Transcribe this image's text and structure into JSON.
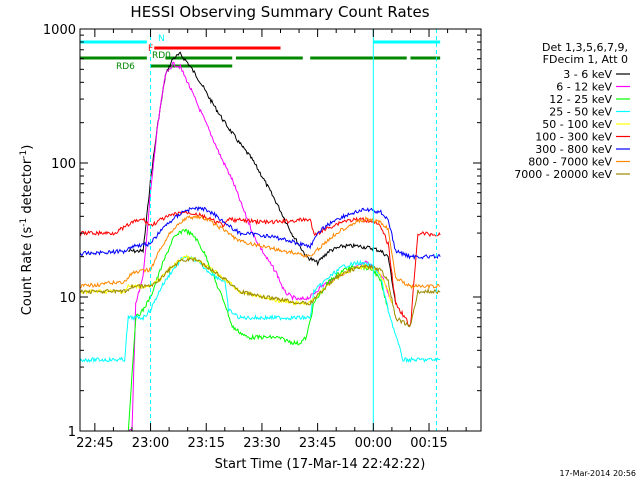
{
  "chart_data": {
    "type": "line",
    "title": "HESSI Observing Summary Count Rates",
    "xlabel": "Start Time (17-Mar-14 22:42:22)",
    "ylabel": "Count Rate (s",
    "ylabel_sup": "-1",
    "ylabel_tail": " detector",
    "ylabel_sup2": "-1",
    "ylabel_close": ")",
    "yscale": "log",
    "ylim": [
      1,
      1000
    ],
    "xlim_minutes": [
      -19,
      89
    ],
    "x_ticks": [
      {
        "label": "22:45",
        "minute": -15
      },
      {
        "label": "23:00",
        "minute": 0
      },
      {
        "label": "23:15",
        "minute": 15
      },
      {
        "label": "23:30",
        "minute": 30
      },
      {
        "label": "23:45",
        "minute": 45
      },
      {
        "label": "00:00",
        "minute": 60
      },
      {
        "label": "00:15",
        "minute": 75
      }
    ],
    "y_ticks": [
      {
        "label": "1",
        "value": 1
      },
      {
        "label": "10",
        "value": 10
      },
      {
        "label": "100",
        "value": 100
      },
      {
        "label": "1000",
        "value": 1000
      }
    ],
    "legend_header": [
      "Det 1,3,5,6,7,9,",
      "FDecim 1, Att 0"
    ],
    "legend_position": "right",
    "series": [
      {
        "name": "3 - 6 keV",
        "color": "#000000",
        "points": [
          [
            -6,
            22
          ],
          [
            -2,
            22
          ],
          [
            -1,
            40
          ],
          [
            0,
            75
          ],
          [
            2,
            200
          ],
          [
            4,
            450
          ],
          [
            6,
            600
          ],
          [
            8,
            650
          ],
          [
            10,
            560
          ],
          [
            13,
            420
          ],
          [
            16,
            300
          ],
          [
            20,
            200
          ],
          [
            24,
            140
          ],
          [
            27,
            110
          ],
          [
            30,
            80
          ],
          [
            34,
            50
          ],
          [
            38,
            30
          ],
          [
            42,
            20
          ],
          [
            45,
            18
          ],
          [
            48,
            22
          ],
          [
            52,
            24
          ],
          [
            56,
            24
          ],
          [
            60,
            23
          ],
          [
            62,
            22
          ],
          [
            64,
            20
          ],
          [
            66,
            9
          ]
        ]
      },
      {
        "name": "6 - 12 keV",
        "color": "#ff00ff",
        "points": [
          [
            -6,
            1
          ],
          [
            -5,
            1
          ],
          [
            -4,
            9
          ],
          [
            -2,
            14
          ],
          [
            0,
            60
          ],
          [
            2,
            200
          ],
          [
            4,
            450
          ],
          [
            6,
            550
          ],
          [
            8,
            520
          ],
          [
            10,
            400
          ],
          [
            13,
            260
          ],
          [
            16,
            170
          ],
          [
            19,
            110
          ],
          [
            22,
            75
          ],
          [
            25,
            45
          ],
          [
            28,
            28
          ],
          [
            31,
            20
          ],
          [
            34,
            15
          ],
          [
            36,
            11
          ],
          [
            38,
            10
          ],
          [
            40,
            9.5
          ],
          [
            43,
            10
          ],
          [
            46,
            12
          ],
          [
            50,
            14
          ],
          [
            54,
            16
          ],
          [
            58,
            18
          ],
          [
            61,
            16
          ],
          [
            63,
            13
          ],
          [
            65,
            9
          ]
        ]
      },
      {
        "name": "12 - 25 keV",
        "color": "#00ff00",
        "points": [
          [
            -6,
            1
          ],
          [
            -4,
            7
          ],
          [
            -2,
            8
          ],
          [
            0,
            10
          ],
          [
            3,
            17
          ],
          [
            6,
            27
          ],
          [
            9,
            32
          ],
          [
            12,
            28
          ],
          [
            15,
            20
          ],
          [
            18,
            12
          ],
          [
            20,
            9
          ],
          [
            22,
            6
          ],
          [
            26,
            5
          ],
          [
            30,
            5
          ],
          [
            34,
            5
          ],
          [
            38,
            4.6
          ],
          [
            40,
            4.5
          ],
          [
            42,
            5
          ],
          [
            44,
            9
          ],
          [
            48,
            13
          ],
          [
            52,
            16
          ],
          [
            56,
            17
          ],
          [
            60,
            16
          ],
          [
            62,
            13
          ],
          [
            64,
            8
          ]
        ]
      },
      {
        "name": "25 - 50 keV",
        "color": "#00ffff",
        "points": [
          [
            -19,
            3.4
          ],
          [
            -7,
            3.4
          ],
          [
            -6,
            7
          ],
          [
            -2,
            7
          ],
          [
            0,
            8
          ],
          [
            3,
            12
          ],
          [
            6,
            16
          ],
          [
            9,
            20
          ],
          [
            12,
            19
          ],
          [
            15,
            16
          ],
          [
            18,
            14
          ],
          [
            20,
            13
          ],
          [
            21,
            8
          ],
          [
            24,
            7
          ],
          [
            30,
            7
          ],
          [
            38,
            7
          ],
          [
            43,
            7
          ],
          [
            44,
            11
          ],
          [
            48,
            14
          ],
          [
            52,
            17
          ],
          [
            56,
            18
          ],
          [
            60,
            17
          ],
          [
            62,
            14
          ],
          [
            64,
            8
          ],
          [
            68,
            3.4
          ],
          [
            78,
            3.4
          ]
        ]
      },
      {
        "name": "50 - 100 keV",
        "color": "#ffff00",
        "points": [
          [
            -19,
            11
          ],
          [
            -7,
            11
          ],
          [
            -6,
            12
          ],
          [
            0,
            12
          ],
          [
            3,
            14
          ],
          [
            6,
            17
          ],
          [
            9,
            20
          ],
          [
            12,
            19
          ],
          [
            15,
            17
          ],
          [
            18,
            15
          ],
          [
            21,
            13
          ],
          [
            24,
            11
          ],
          [
            30,
            10
          ],
          [
            38,
            9
          ],
          [
            43,
            9
          ],
          [
            46,
            11
          ],
          [
            50,
            14
          ],
          [
            54,
            16
          ],
          [
            58,
            17
          ],
          [
            61,
            16
          ],
          [
            63,
            13
          ],
          [
            65,
            9
          ]
        ]
      },
      {
        "name": "100 - 300 keV",
        "color": "#ff0000",
        "points": [
          [
            -19,
            30
          ],
          [
            -10,
            30
          ],
          [
            -7,
            33
          ],
          [
            -5,
            36
          ],
          [
            -2,
            38
          ],
          [
            0,
            34
          ],
          [
            3,
            38
          ],
          [
            6,
            41
          ],
          [
            9,
            43
          ],
          [
            12,
            42
          ],
          [
            15,
            39
          ],
          [
            18,
            36
          ],
          [
            20,
            34
          ],
          [
            21,
            38
          ],
          [
            26,
            37
          ],
          [
            32,
            36
          ],
          [
            38,
            37
          ],
          [
            43,
            38
          ],
          [
            44,
            29
          ],
          [
            48,
            33
          ],
          [
            52,
            37
          ],
          [
            56,
            38
          ],
          [
            60,
            37
          ],
          [
            62,
            33
          ],
          [
            64,
            25
          ],
          [
            66,
            9
          ],
          [
            70,
            6
          ],
          [
            72,
            30
          ],
          [
            78,
            29
          ]
        ]
      },
      {
        "name": "300 - 800 keV",
        "color": "#0000ff",
        "points": [
          [
            -19,
            21
          ],
          [
            -7,
            22
          ],
          [
            -5,
            24
          ],
          [
            0,
            25
          ],
          [
            3,
            32
          ],
          [
            6,
            38
          ],
          [
            9,
            44
          ],
          [
            12,
            46
          ],
          [
            15,
            45
          ],
          [
            18,
            40
          ],
          [
            21,
            34
          ],
          [
            24,
            30
          ],
          [
            30,
            29
          ],
          [
            36,
            27
          ],
          [
            40,
            25
          ],
          [
            43,
            24
          ],
          [
            46,
            32
          ],
          [
            50,
            38
          ],
          [
            54,
            42
          ],
          [
            58,
            45
          ],
          [
            62,
            43
          ],
          [
            64,
            38
          ],
          [
            66,
            22
          ],
          [
            70,
            20
          ],
          [
            78,
            20
          ]
        ]
      },
      {
        "name": "800 - 7000 keV",
        "color": "#ff8800",
        "points": [
          [
            -19,
            12
          ],
          [
            -7,
            13
          ],
          [
            -5,
            15
          ],
          [
            0,
            16
          ],
          [
            3,
            24
          ],
          [
            6,
            32
          ],
          [
            9,
            38
          ],
          [
            12,
            40
          ],
          [
            15,
            38
          ],
          [
            18,
            34
          ],
          [
            21,
            30
          ],
          [
            24,
            26
          ],
          [
            30,
            24
          ],
          [
            36,
            22
          ],
          [
            40,
            21
          ],
          [
            43,
            20
          ],
          [
            46,
            24
          ],
          [
            50,
            30
          ],
          [
            54,
            35
          ],
          [
            58,
            38
          ],
          [
            62,
            36
          ],
          [
            64,
            32
          ],
          [
            66,
            14
          ],
          [
            70,
            12
          ],
          [
            78,
            12
          ]
        ]
      },
      {
        "name": "7000 - 20000 keV",
        "color": "#998800",
        "points": [
          [
            -19,
            11
          ],
          [
            -7,
            11
          ],
          [
            -5,
            12
          ],
          [
            0,
            12
          ],
          [
            3,
            14
          ],
          [
            6,
            17
          ],
          [
            9,
            19
          ],
          [
            12,
            19
          ],
          [
            15,
            17
          ],
          [
            18,
            15
          ],
          [
            21,
            13
          ],
          [
            24,
            11
          ],
          [
            30,
            10
          ],
          [
            36,
            9.5
          ],
          [
            40,
            9
          ],
          [
            43,
            9
          ],
          [
            46,
            11
          ],
          [
            50,
            14
          ],
          [
            54,
            16
          ],
          [
            58,
            17
          ],
          [
            62,
            16
          ],
          [
            64,
            13
          ],
          [
            66,
            7
          ],
          [
            70,
            6
          ],
          [
            72,
            11
          ],
          [
            78,
            11
          ]
        ]
      }
    ],
    "flag_bars": [
      {
        "label": "N",
        "color": "#00ffff",
        "segments": [
          [
            -19,
            -1
          ],
          [
            60,
            78
          ]
        ]
      },
      {
        "label": "F",
        "color": "#ff0000",
        "segments": [
          [
            1,
            35
          ]
        ]
      },
      {
        "label": "RD0",
        "color": "#008800",
        "segments": [
          [
            -19,
            -1
          ],
          [
            4,
            22
          ],
          [
            23,
            41
          ],
          [
            43,
            69
          ],
          [
            70,
            78
          ]
        ]
      },
      {
        "label": "RD6",
        "color": "#008800",
        "segments": [
          [
            0,
            22
          ]
        ]
      }
    ],
    "vertical_lines": [
      {
        "minute": 0,
        "color": "#00ffff",
        "style": "dashed"
      },
      {
        "minute": 60,
        "color": "#00ffff",
        "style": "solid"
      },
      {
        "minute": 77,
        "color": "#00ffff",
        "style": "dashed"
      }
    ]
  },
  "footer": {
    "timestamp": "17-Mar-2014 20:56"
  }
}
